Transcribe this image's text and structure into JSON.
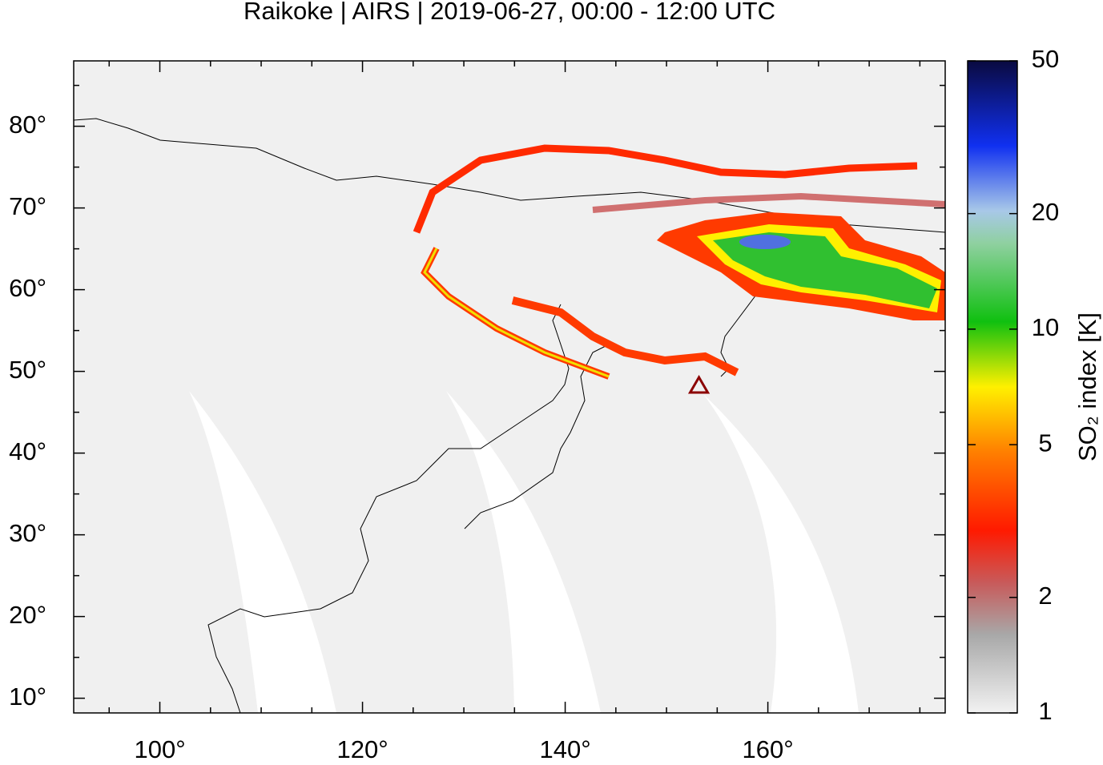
{
  "chart_data": {
    "type": "map",
    "title": "Raikoke | AIRS | 2019-06-27, 00:00 - 12:00 UTC",
    "xlim": [
      91.5,
      177.5
    ],
    "ylim": [
      8.2,
      88.0
    ],
    "xticks": [
      {
        "value": 100,
        "label": "100°"
      },
      {
        "value": 120,
        "label": "120°"
      },
      {
        "value": 140,
        "label": "140°"
      },
      {
        "value": 160,
        "label": "160°"
      }
    ],
    "yticks": [
      {
        "value": 10,
        "label": "10°"
      },
      {
        "value": 20,
        "label": "20°"
      },
      {
        "value": 30,
        "label": "30°"
      },
      {
        "value": 40,
        "label": "40°"
      },
      {
        "value": 50,
        "label": "50°"
      },
      {
        "value": 60,
        "label": "60°"
      },
      {
        "value": 70,
        "label": "70°"
      },
      {
        "value": 80,
        "label": "80°"
      }
    ],
    "xminorticks": [
      95,
      105,
      110,
      115,
      125,
      130,
      135,
      145,
      150,
      155,
      165,
      170,
      175
    ],
    "yminorticks": [
      15,
      25,
      35,
      45,
      55,
      65,
      75,
      85
    ],
    "volcano": {
      "lon": 153.2,
      "lat": 48.3,
      "color": "#8b0000"
    },
    "colorbar": {
      "label": "SO₂ index [K]",
      "scale": "log",
      "lim": [
        1,
        50
      ],
      "ticks": [
        1,
        2,
        5,
        10,
        20,
        50
      ]
    }
  }
}
